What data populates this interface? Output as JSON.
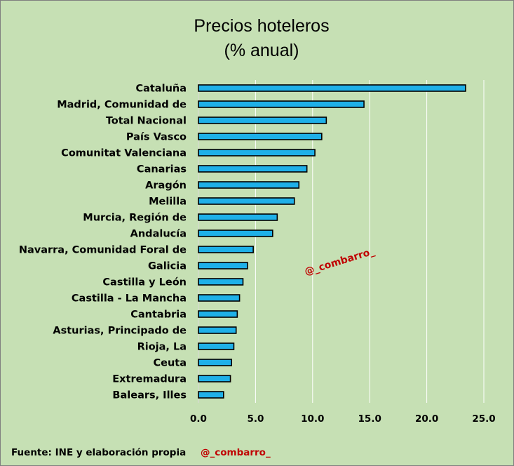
{
  "chart_data": {
    "type": "bar",
    "orientation": "horizontal",
    "title": "Precios hoteleros",
    "subtitle": "(% anual)",
    "categories": [
      "Cataluña",
      "Madrid, Comunidad de",
      "Total Nacional",
      "País Vasco",
      "Comunitat Valenciana",
      "Canarias",
      "Aragón",
      "Melilla",
      "Murcia, Región de",
      "Andalucía",
      "Navarra, Comunidad Foral de",
      "Galicia",
      "Castilla y León",
      "Castilla - La Mancha",
      "Cantabria",
      "Asturias, Principado de",
      "Rioja, La",
      "Ceuta",
      "Extremadura",
      "Balears, Illes"
    ],
    "values": [
      23.4,
      14.5,
      11.2,
      10.8,
      10.2,
      9.5,
      8.8,
      8.4,
      6.9,
      6.5,
      4.8,
      4.3,
      3.9,
      3.6,
      3.4,
      3.3,
      3.1,
      2.9,
      2.8,
      2.2
    ],
    "xlim": [
      0,
      25
    ],
    "xticks": [
      "0.0",
      "5.0",
      "10.0",
      "15.0",
      "20.0",
      "25.0"
    ],
    "grid": true,
    "bar_color": "#1fb0e8"
  },
  "watermark": "@_combarro_",
  "footer": {
    "source": "Fuente: INE  y elaboración propia",
    "handle": "@_combarro_"
  },
  "colors": {
    "background": "#c6e0b4",
    "grid": "#ffffff",
    "accent_red": "#c00000"
  }
}
